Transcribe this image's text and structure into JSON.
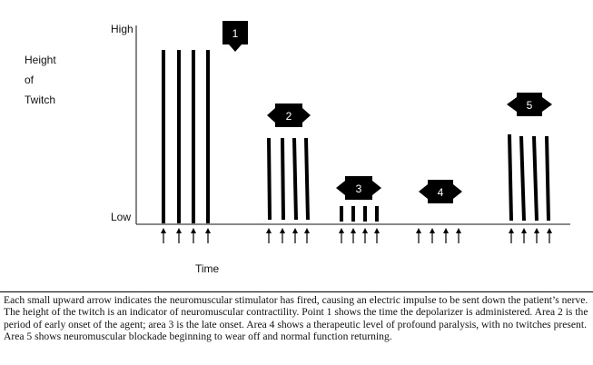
{
  "axis": {
    "y_high": "High",
    "y_low": "Low",
    "y_title_lines": [
      "Height",
      "of",
      "Twitch"
    ],
    "x_title": "Time"
  },
  "areas": [
    {
      "label": "1",
      "marker": "down-arrow-box",
      "twitch_count": 4,
      "twitch_height": 1.0,
      "twitch_style": "tall"
    },
    {
      "label": "2",
      "marker": "double-arrow-box",
      "twitch_count": 4,
      "twitch_height": 0.48,
      "twitch_style": "fading"
    },
    {
      "label": "3",
      "marker": "double-arrow-box",
      "twitch_count": 4,
      "twitch_height": 0.1,
      "twitch_style": "short"
    },
    {
      "label": "4",
      "marker": "double-arrow-box",
      "twitch_count": 0,
      "twitch_height": 0,
      "twitch_style": "none"
    },
    {
      "label": "5",
      "marker": "double-arrow-box",
      "twitch_count": 4,
      "twitch_height": 0.5,
      "twitch_style": "recovering"
    }
  ],
  "stimulus_arrows_per_group": 4,
  "caption": "Each small upward arrow indicates the neuromuscular stimulator has fired, causing an electric impulse to be sent down the patient’s nerve. The height of the twitch is an indicator of neuromuscular contractility. Point 1 shows the time the depolarizer is administered. Area 2 is the period of early onset of the agent; area 3 is the late onset. Area 4 shows a therapeutic level of profound paralysis, with no twitches present. Area 5 shows neuromuscular blockade beginning to wear off and normal function returning."
}
